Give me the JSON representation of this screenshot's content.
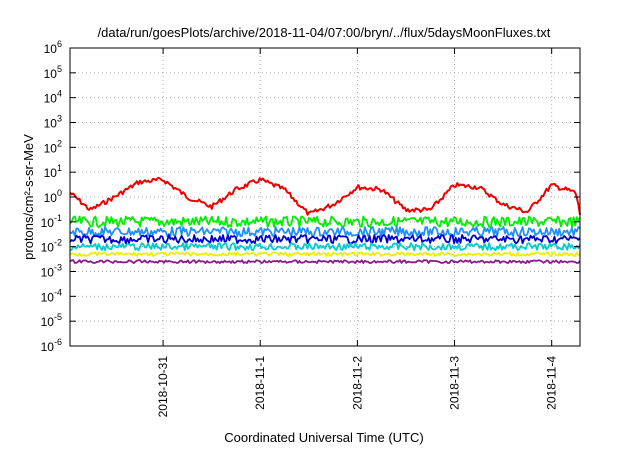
{
  "chart_data": {
    "type": "line",
    "title": "/data/run/goesPlots/archive/2018-11-04/07:00/bryn/../flux/5daysMoonFluxes.txt",
    "xlabel": "Coordinated Universal Time (UTC)",
    "ylabel": "protons/cm²-s-sr-MeV",
    "yscale": "log",
    "ylim": [
      1e-06,
      1000000.0
    ],
    "xlim": [
      "2018-10-30T01:00",
      "2018-11-04T07:00"
    ],
    "grid": true,
    "legend": "none",
    "x_ticks": [
      {
        "label": "2018-10-31",
        "x": "2018-10-31T00:00"
      },
      {
        "label": "2018-11-1",
        "x": "2018-11-01T00:00"
      },
      {
        "label": "2018-11-2",
        "x": "2018-11-02T00:00"
      },
      {
        "label": "2018-11-3",
        "x": "2018-11-03T00:00"
      },
      {
        "label": "2018-11-4",
        "x": "2018-11-04T00:00"
      }
    ],
    "y_ticks": [
      {
        "base": "10",
        "exp": "6"
      },
      {
        "base": "10",
        "exp": "5"
      },
      {
        "base": "10",
        "exp": "4"
      },
      {
        "base": "10",
        "exp": "3"
      },
      {
        "base": "10",
        "exp": "2"
      },
      {
        "base": "10",
        "exp": "1"
      },
      {
        "base": "10",
        "exp": "0"
      },
      {
        "base": "10",
        "exp": "-1"
      },
      {
        "base": "10",
        "exp": "-2"
      },
      {
        "base": "10",
        "exp": "-3"
      },
      {
        "base": "10",
        "exp": "-4"
      },
      {
        "base": "10",
        "exp": "-5"
      },
      {
        "base": "10",
        "exp": "-6"
      }
    ],
    "series": [
      {
        "color": "#ee0000",
        "x": [
          "2018-10-30T01:00",
          "2018-10-30T06:00",
          "2018-10-30T12:00",
          "2018-10-30T18:00",
          "2018-10-31T00:00",
          "2018-10-31T06:00",
          "2018-10-31T12:00",
          "2018-10-31T18:00",
          "2018-11-01T00:00",
          "2018-11-01T06:00",
          "2018-11-01T12:00",
          "2018-11-01T18:00",
          "2018-11-02T00:00",
          "2018-11-02T06:00",
          "2018-11-02T12:00",
          "2018-11-02T18:00",
          "2018-11-03T00:00",
          "2018-11-03T06:00",
          "2018-11-03T12:00",
          "2018-11-03T18:00",
          "2018-11-04T00:00",
          "2018-11-04T06:00",
          "2018-11-04T07:00"
        ],
        "values": [
          1.5,
          0.3,
          1.0,
          4.0,
          5.0,
          1.0,
          0.4,
          2.0,
          5.0,
          2.0,
          0.2,
          0.5,
          2.5,
          2.0,
          0.3,
          0.3,
          3.0,
          2.5,
          0.5,
          0.25,
          3.0,
          1.5,
          0.2
        ]
      },
      {
        "color": "#00ee00",
        "x": [
          "2018-10-30T01:00",
          "2018-11-04T07:00"
        ],
        "values": [
          0.1,
          0.1
        ]
      },
      {
        "color": "#1e90ff",
        "x": [
          "2018-10-30T01:00",
          "2018-11-04T07:00"
        ],
        "values": [
          0.04,
          0.04
        ]
      },
      {
        "color": "#0000cd",
        "x": [
          "2018-10-30T01:00",
          "2018-11-04T07:00"
        ],
        "values": [
          0.02,
          0.02
        ]
      },
      {
        "color": "#00cdcd",
        "x": [
          "2018-10-30T01:00",
          "2018-11-04T07:00"
        ],
        "values": [
          0.01,
          0.01
        ]
      },
      {
        "color": "#eeee00",
        "x": [
          "2018-10-30T01:00",
          "2018-11-04T07:00"
        ],
        "values": [
          0.005,
          0.005
        ]
      },
      {
        "color": "#8b1a8b",
        "x": [
          "2018-10-30T01:00",
          "2018-11-04T07:00"
        ],
        "values": [
          0.0025,
          0.0025
        ]
      }
    ]
  }
}
